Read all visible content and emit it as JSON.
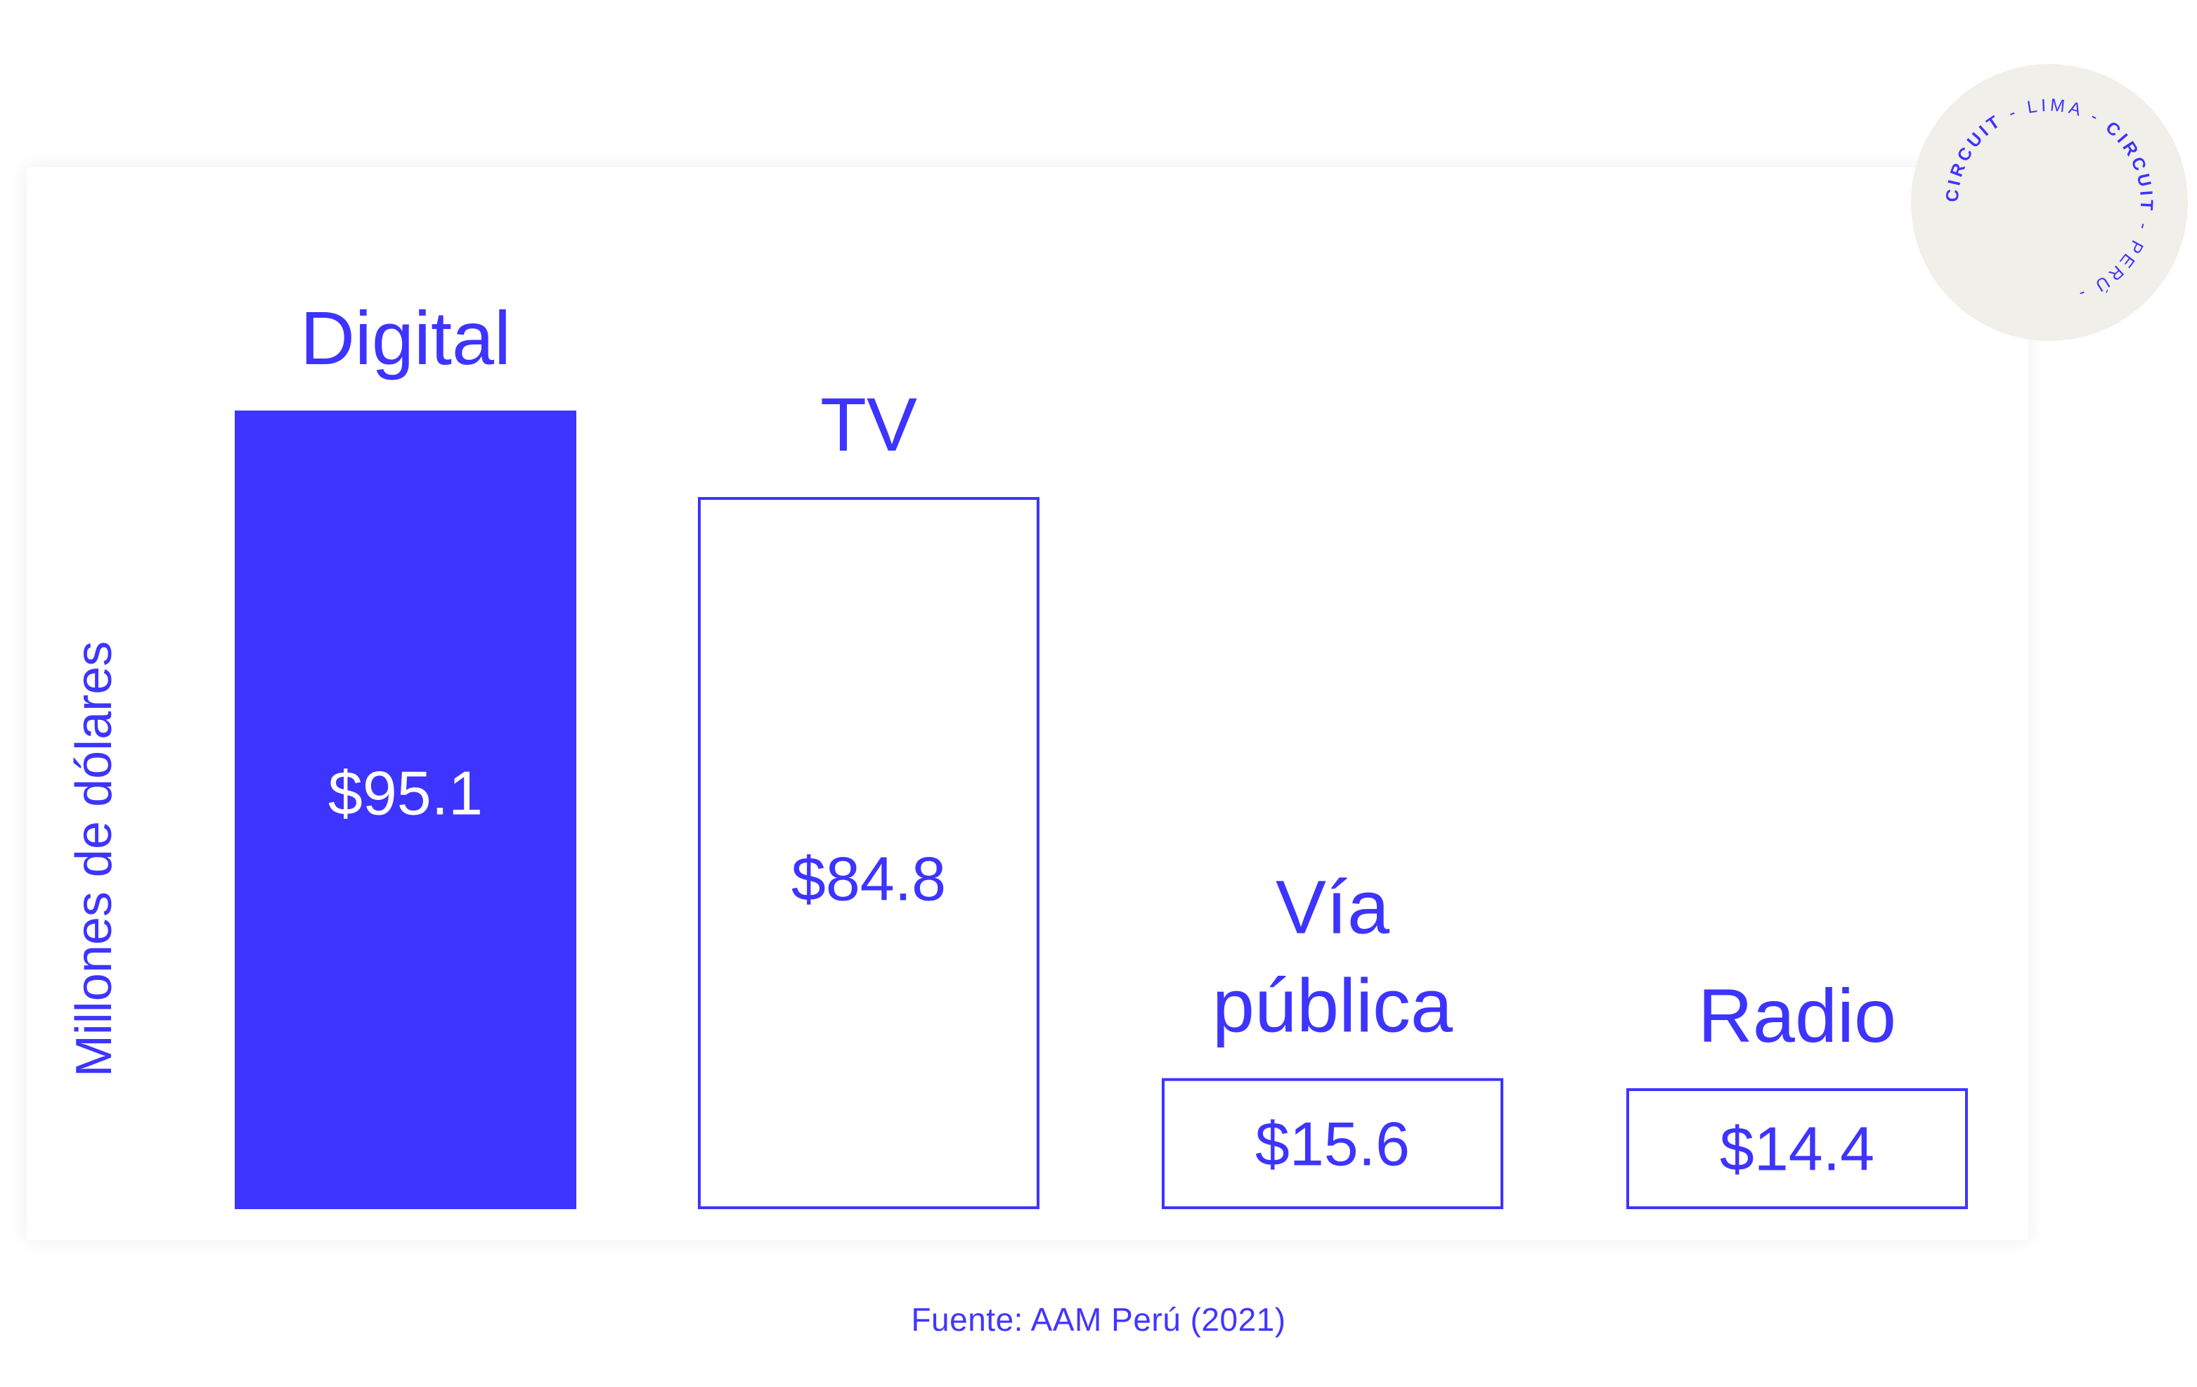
{
  "colors": {
    "accent": "#3d34ff",
    "bar_outline": "#3d34ff",
    "bar_fill_highlight": "#3d34ff",
    "value_on_fill": "#ffffff",
    "badge_bg": "#f1efe9",
    "card_bg": "#ffffff"
  },
  "chart_data": {
    "type": "bar",
    "ylabel": "Millones de dólares",
    "categories": [
      [
        "Digital"
      ],
      [
        "TV"
      ],
      [
        "Vía",
        "pública"
      ],
      [
        "Radio"
      ]
    ],
    "values": [
      95.1,
      84.8,
      15.6,
      14.4
    ],
    "value_labels": [
      "$95.1",
      "$84.8",
      "$15.6",
      "$14.4"
    ],
    "highlighted": [
      true,
      false,
      false,
      false
    ],
    "ylim": [
      0,
      95.1
    ],
    "grid": false,
    "legend": "none"
  },
  "source": "Fuente: AAM Perú (2021)",
  "badge": {
    "brand": "CIRCUIT",
    "city": "LIMA",
    "country": "PERÚ",
    "separator": "-",
    "icon": "circuit-lima-peru-seal"
  }
}
